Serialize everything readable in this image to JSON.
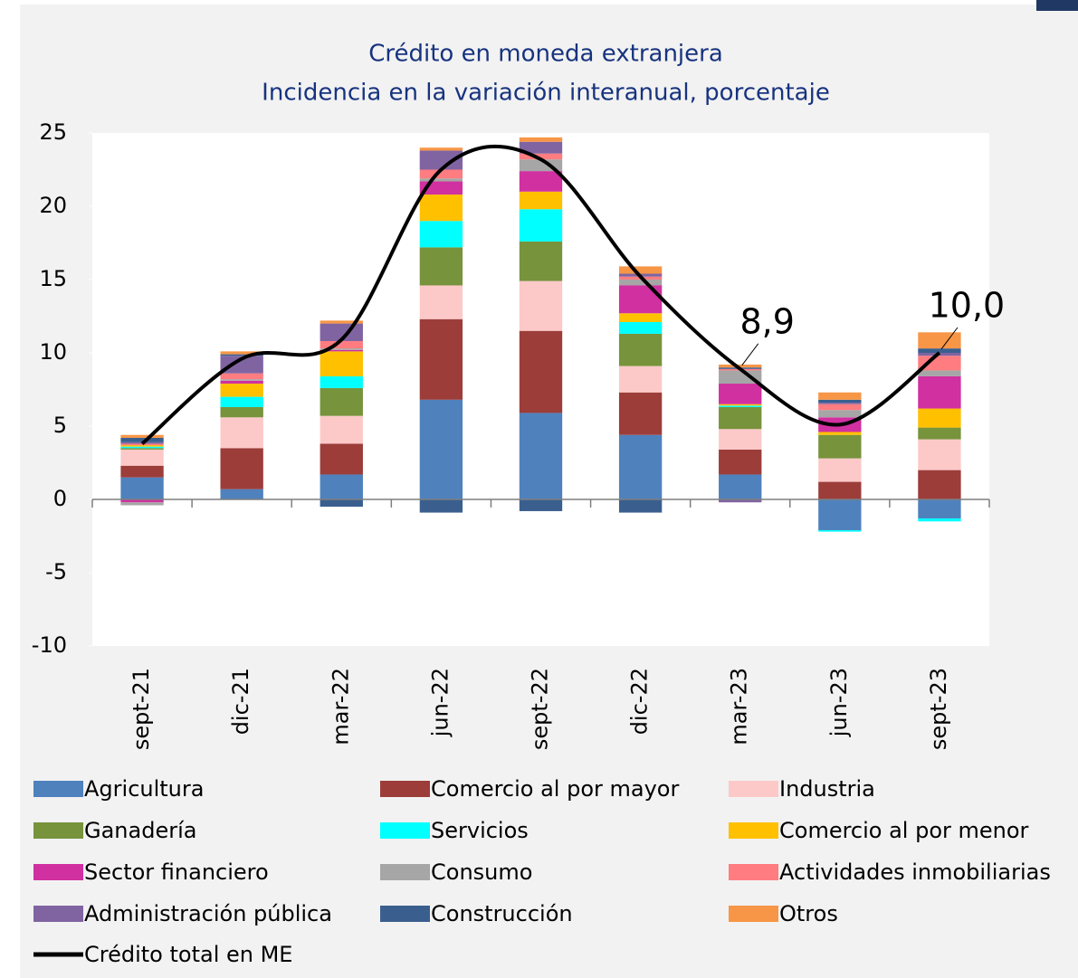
{
  "chart_data": {
    "type": "stacked_bar_line",
    "title": "Crédito en moneda extranjera",
    "subtitle": "Incidencia en la variación interanual, porcentaje",
    "categories": [
      "sept-21",
      "dic-21",
      "mar-22",
      "jun-22",
      "sept-22",
      "dic-22",
      "mar-23",
      "jun-23",
      "sept-23"
    ],
    "ylim": [
      -10,
      25
    ],
    "yticks": [
      -10,
      -5,
      0,
      5,
      10,
      15,
      20,
      25
    ],
    "series": [
      {
        "name": "Agricultura",
        "color": "#4f81bd",
        "values": [
          1.5,
          0.7,
          1.7,
          6.8,
          5.9,
          4.4,
          1.7,
          -2.1,
          -1.3
        ]
      },
      {
        "name": "Comercio al por mayor",
        "color": "#9c3d3a",
        "values": [
          0.8,
          2.8,
          2.1,
          5.5,
          5.6,
          2.9,
          1.7,
          1.2,
          2.0
        ]
      },
      {
        "name": "Industria",
        "color": "#fcc9c8",
        "values": [
          1.1,
          2.1,
          1.9,
          2.3,
          3.4,
          1.8,
          1.4,
          1.6,
          2.1
        ]
      },
      {
        "name": "Ganadería",
        "color": "#77933c",
        "values": [
          0.1,
          0.7,
          1.9,
          2.6,
          2.7,
          2.2,
          1.5,
          1.6,
          0.8
        ]
      },
      {
        "name": "Servicios",
        "color": "#00ffff",
        "values": [
          0.1,
          0.7,
          0.8,
          1.8,
          2.2,
          0.8,
          0.1,
          -0.1,
          -0.2
        ]
      },
      {
        "name": "Comercio al por menor",
        "color": "#ffc000",
        "values": [
          0.1,
          0.9,
          1.7,
          1.8,
          1.2,
          0.6,
          0.1,
          0.2,
          1.3
        ]
      },
      {
        "name": "Sector financiero",
        "color": "#d030a0",
        "values": [
          -0.2,
          0.2,
          0.1,
          0.9,
          1.4,
          1.9,
          1.4,
          1.0,
          2.2
        ]
      },
      {
        "name": "Consumo",
        "color": "#a6a6a6",
        "values": [
          -0.2,
          0.1,
          0.1,
          0.2,
          0.8,
          0.4,
          0.9,
          0.5,
          0.4
        ]
      },
      {
        "name": "Actividades inmobiliarias",
        "color": "#ff7c80",
        "values": [
          0.1,
          0.4,
          0.5,
          0.6,
          0.4,
          0.2,
          0.1,
          0.4,
          1.0
        ]
      },
      {
        "name": "Administración pública",
        "color": "#8064a2",
        "values": [
          0.1,
          1.2,
          1.2,
          1.3,
          0.8,
          0.2,
          -0.2,
          0.1,
          0.2
        ]
      },
      {
        "name": "Construcción",
        "color": "#3a5f8f",
        "values": [
          0.3,
          0.1,
          -0.5,
          -0.9,
          -0.8,
          -0.9,
          0.1,
          0.2,
          0.3
        ]
      },
      {
        "name": "Otros",
        "color": "#f79646",
        "values": [
          0.2,
          0.2,
          0.2,
          0.2,
          0.3,
          0.5,
          0.2,
          0.5,
          1.1
        ]
      }
    ],
    "line": {
      "name": "Crédito total en ME",
      "color": "#000000",
      "values": [
        3.8,
        9.6,
        10.9,
        22.5,
        23.2,
        15.2,
        8.9,
        5.1,
        10.0
      ],
      "value_labels": [
        null,
        null,
        null,
        null,
        null,
        null,
        "8,9",
        null,
        "10,0"
      ]
    }
  }
}
